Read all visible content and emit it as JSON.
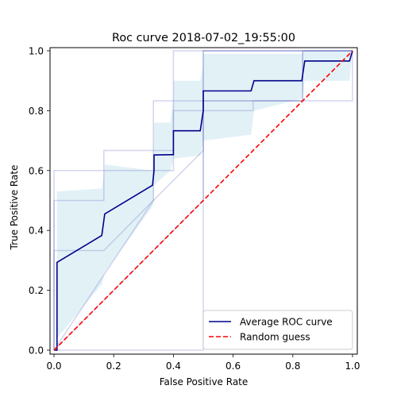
{
  "chart_data": {
    "type": "line",
    "title": "Roc curve 2018-07-02_19:55:00",
    "xlabel": "False Positive Rate",
    "ylabel": "True Positive Rate",
    "xlim": [
      0.0,
      1.0
    ],
    "ylim": [
      0.0,
      1.0
    ],
    "x_ticks": [
      "0.0",
      "0.2",
      "0.4",
      "0.6",
      "0.8",
      "1.0"
    ],
    "y_ticks": [
      "0.0",
      "0.2",
      "0.4",
      "0.6",
      "0.8",
      "1.0"
    ],
    "grid": false,
    "legend_position": "bottom-right",
    "series": [
      {
        "name": "Average ROC curve",
        "color": "#00008b",
        "style": "solid",
        "x": [
          0.0,
          0.01,
          0.01,
          0.16,
          0.17,
          0.17,
          0.33,
          0.335,
          0.335,
          0.39,
          0.4,
          0.4,
          0.49,
          0.5,
          0.5,
          0.66,
          0.67,
          0.67,
          0.83,
          0.84,
          0.84,
          0.99,
          1.0
        ],
        "y": [
          0.0,
          0.0,
          0.293,
          0.383,
          0.455,
          0.455,
          0.551,
          0.6,
          0.652,
          0.653,
          0.653,
          0.733,
          0.733,
          0.8,
          0.866,
          0.866,
          0.9,
          0.9,
          0.9,
          0.966,
          0.966,
          0.966,
          1.0
        ]
      },
      {
        "name": "Random guess",
        "color": "#ff0000",
        "style": "dashed",
        "x": [
          0.0,
          1.0
        ],
        "y": [
          0.0,
          1.0
        ]
      }
    ],
    "confidence_band": {
      "color": "#add8e6",
      "x": [
        0.0,
        0.01,
        0.01,
        0.16,
        0.17,
        0.17,
        0.33,
        0.335,
        0.335,
        0.39,
        0.4,
        0.4,
        0.49,
        0.5,
        0.5,
        0.66,
        0.67,
        0.67,
        0.83,
        0.84,
        0.84,
        0.99,
        1.0
      ],
      "lower": [
        0.0,
        0.0,
        0.04,
        0.22,
        0.26,
        0.26,
        0.48,
        0.5,
        0.55,
        0.6,
        0.64,
        0.64,
        0.65,
        0.7,
        0.7,
        0.72,
        0.8,
        0.8,
        0.84,
        0.9,
        0.9,
        0.9,
        1.0
      ],
      "upper": [
        0.0,
        0.0,
        0.53,
        0.54,
        0.61,
        0.62,
        0.6,
        0.7,
        0.76,
        0.76,
        0.84,
        0.9,
        0.9,
        0.95,
        0.99,
        0.99,
        0.99,
        0.99,
        0.99,
        1.0,
        1.0,
        1.0,
        1.0
      ]
    },
    "individual_curves": {
      "color": "#6a74c4",
      "curves": [
        {
          "x": [
            0.0,
            0.0,
            0.167,
            0.167,
            0.333,
            0.333,
            0.5,
            0.5,
            1.0,
            1.0
          ],
          "y": [
            0.0,
            0.5,
            0.5,
            0.667,
            0.667,
            0.833,
            0.833,
            1.0,
            1.0,
            1.0
          ]
        },
        {
          "x": [
            0.0,
            0.0,
            0.167,
            0.167,
            0.333,
            0.333,
            0.5,
            0.5,
            0.833,
            0.833,
            1.0
          ],
          "y": [
            0.0,
            0.333,
            0.333,
            0.333,
            0.5,
            0.5,
            0.667,
            0.833,
            0.833,
            1.0,
            1.0
          ]
        },
        {
          "x": [
            0.0,
            0.0,
            0.333,
            0.333,
            0.4,
            0.4,
            0.5,
            0.5,
            0.667,
            0.667,
            0.833,
            0.833,
            1.0,
            1.0
          ],
          "y": [
            0.0,
            0.6,
            0.6,
            0.6,
            0.6,
            0.8,
            0.8,
            0.8,
            0.8,
            0.833,
            0.833,
            1.0,
            1.0,
            1.0
          ]
        },
        {
          "x": [
            0.0,
            0.333,
            0.333,
            0.4,
            0.4,
            0.4,
            1.0,
            1.0
          ],
          "y": [
            0.0,
            0.5,
            0.667,
            0.667,
            0.833,
            1.0,
            1.0,
            1.0
          ]
        },
        {
          "x": [
            0.0,
            0.5,
            0.5,
            0.667,
            0.667,
            1.0,
            1.0
          ],
          "y": [
            0.0,
            0.5,
            0.833,
            0.833,
            0.833,
            0.833,
            1.0
          ]
        },
        {
          "x": [
            0.0,
            0.0,
            0.5,
            0.5,
            0.833,
            0.833,
            1.0
          ],
          "y": [
            0.0,
            0.0,
            0.0,
            1.0,
            1.0,
            1.0,
            1.0
          ]
        }
      ]
    }
  }
}
